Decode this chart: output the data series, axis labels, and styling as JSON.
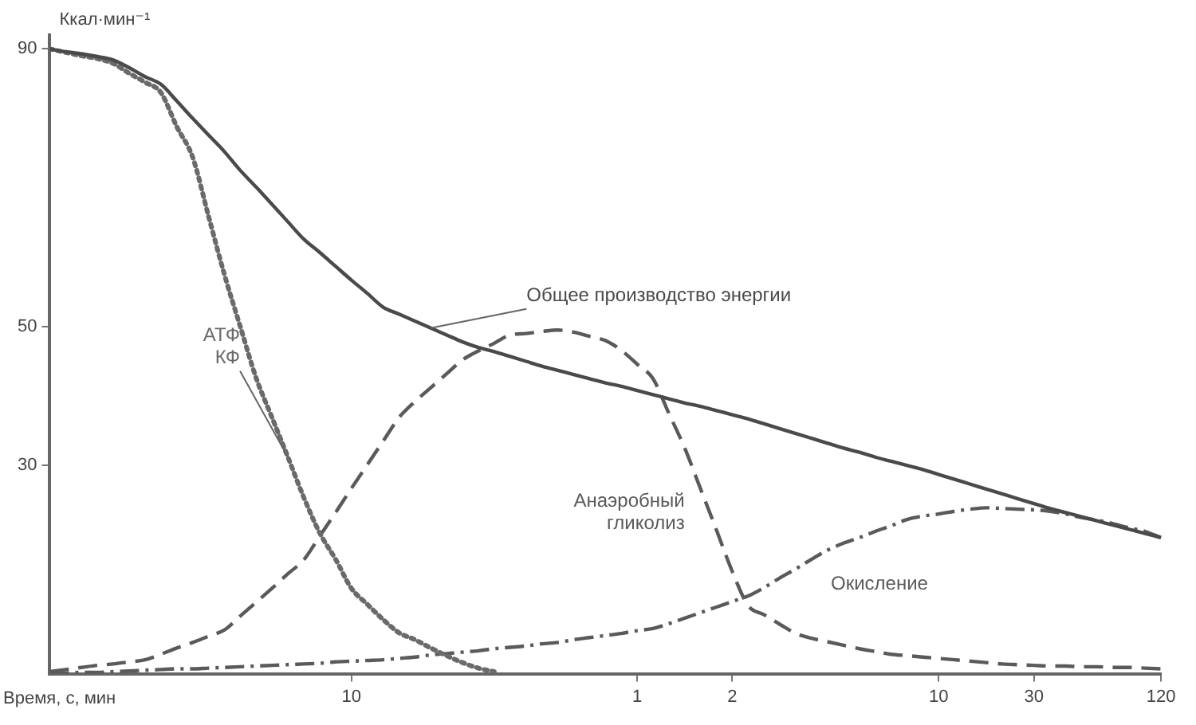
{
  "chart_data": {
    "type": "line",
    "xlabel": "Время, с, мин",
    "ylabel": "Ккал·мин⁻¹",
    "categories": [
      null,
      null,
      null,
      null,
      null,
      null,
      null,
      null,
      null,
      null,
      null,
      null,
      null,
      null,
      null,
      null,
      null,
      null,
      null,
      "10",
      null,
      null,
      null,
      null,
      null,
      null,
      null,
      null,
      null,
      null,
      null,
      null,
      null,
      null,
      null,
      null,
      null,
      "1",
      null,
      null,
      null,
      null,
      null,
      "2",
      null,
      null,
      null,
      null,
      null,
      null,
      null,
      null,
      null,
      null,
      null,
      null,
      "10",
      null,
      null,
      null,
      null,
      null,
      "30",
      null,
      null,
      null,
      null,
      null,
      null,
      null,
      "120"
    ],
    "ylim": [
      0,
      92
    ],
    "yticks": [
      30,
      50,
      90
    ],
    "grid": false,
    "legend": false,
    "marker": "none",
    "series": [
      {
        "name": "Общее производство энергии",
        "color": "#4a4a4a",
        "line_style": "solid",
        "values": [
          90,
          89.6,
          89.3,
          88.9,
          88.4,
          87.3,
          86.0,
          84.9,
          82.5,
          80.0,
          77.6,
          75.2,
          72.5,
          70.1,
          67.6,
          65.1,
          62.6,
          60.7,
          58.7,
          56.7,
          54.8,
          52.8,
          51.8,
          50.8,
          49.8,
          48.8,
          47.8,
          47.0,
          46.4,
          45.7,
          45.0,
          44.3,
          43.7,
          43.1,
          42.5,
          41.9,
          41.4,
          40.8,
          40.2,
          39.6,
          39.0,
          38.5,
          37.9,
          37.3,
          36.7,
          36.0,
          35.3,
          34.6,
          33.9,
          33.2,
          32.5,
          31.9,
          31.2,
          30.6,
          30.0,
          29.4,
          28.7,
          28.0,
          27.3,
          26.6,
          25.9,
          25.2,
          24.5,
          23.8,
          23.2,
          22.6,
          22.0,
          21.4,
          20.8,
          20.2,
          19.6
        ]
      },
      {
        "name": "АТФ КФ",
        "color": "#6a6a6a",
        "line_style": "dotted",
        "values": [
          90,
          89.5,
          89.0,
          88.6,
          87.9,
          86.5,
          85.2,
          83.7,
          78.8,
          74.4,
          65.9,
          57.5,
          50.0,
          42.6,
          36.9,
          31.2,
          25.4,
          20.3,
          16.5,
          12.3,
          10.0,
          7.8,
          5.9,
          4.9,
          3.7,
          2.6,
          1.6,
          0.8,
          0.3,
          null,
          null,
          null,
          null,
          null,
          null,
          null,
          null,
          null,
          null,
          null,
          null,
          null,
          null,
          null,
          null,
          null,
          null,
          null,
          null,
          null,
          null,
          null,
          null,
          null,
          null,
          null,
          null,
          null,
          null,
          null,
          null,
          null,
          null,
          null,
          null,
          null,
          null,
          null,
          null,
          null,
          null
        ]
      },
      {
        "name": "Анаэробный гликолиз",
        "color": "#5a5a5a",
        "line_style": "dashed",
        "values": [
          0.3,
          0.6,
          0.9,
          1.2,
          1.4,
          1.7,
          2.0,
          2.8,
          3.7,
          4.5,
          5.4,
          6.3,
          8.3,
          10.3,
          12.3,
          14.4,
          16.4,
          19.8,
          23.2,
          26.7,
          30.1,
          33.5,
          36.9,
          39.2,
          41.2,
          43.2,
          45.2,
          46.5,
          47.6,
          48.8,
          49.0,
          49.3,
          49.5,
          49.2,
          48.6,
          48.0,
          46.6,
          44.6,
          42.5,
          37.5,
          32.5,
          26.6,
          20.7,
          14.7,
          9.8,
          8.5,
          7.1,
          5.8,
          5.1,
          4.6,
          4.1,
          3.6,
          3.2,
          2.8,
          2.6,
          2.4,
          2.2,
          2.0,
          1.8,
          1.6,
          1.4,
          1.3,
          1.2,
          1.1,
          1.1,
          1.0,
          1.0,
          0.9,
          0.9,
          0.8,
          0.7
        ]
      },
      {
        "name": "Окисление",
        "color": "#5a5a5a",
        "line_style": "dashdot",
        "values": [
          0,
          0.1,
          0.2,
          0.2,
          0.3,
          0.4,
          0.5,
          0.6,
          0.7,
          0.7,
          0.8,
          0.9,
          1.0,
          1.1,
          1.2,
          1.3,
          1.4,
          1.5,
          1.7,
          1.8,
          1.9,
          2.0,
          2.2,
          2.4,
          2.7,
          2.9,
          3.1,
          3.3,
          3.6,
          3.8,
          4.0,
          4.3,
          4.5,
          4.9,
          5.2,
          5.5,
          5.8,
          6.2,
          6.5,
          7.2,
          8.0,
          8.8,
          9.6,
          10.4,
          11.2,
          12.4,
          13.8,
          15.1,
          16.5,
          17.8,
          18.8,
          19.6,
          20.5,
          21.3,
          22.2,
          22.7,
          23.0,
          23.4,
          23.7,
          23.9,
          23.8,
          23.7,
          23.6,
          23.4,
          23.0,
          22.5,
          22.1,
          21.6,
          21.0,
          20.5,
          19.6
        ]
      }
    ]
  }
}
